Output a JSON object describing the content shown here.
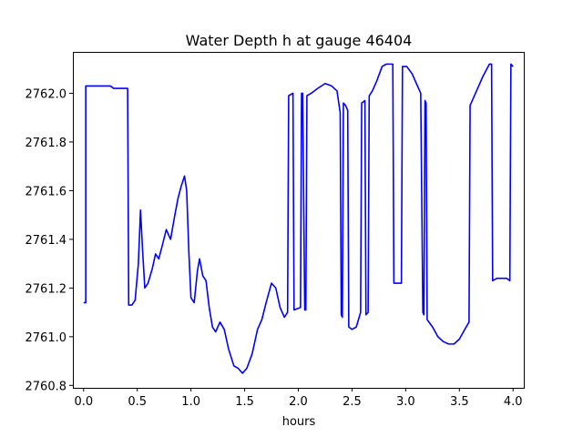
{
  "chart_data": {
    "type": "line",
    "title": "Water Depth h at gauge 46404",
    "xlabel": "hours",
    "ylabel": "",
    "xlim": [
      -0.1,
      4.1
    ],
    "ylim": [
      2760.79,
      2762.17
    ],
    "xticks": [
      0.0,
      0.5,
      1.0,
      1.5,
      2.0,
      2.5,
      3.0,
      3.5,
      4.0
    ],
    "xtick_labels": [
      "0.0",
      "0.5",
      "1.0",
      "1.5",
      "2.0",
      "2.5",
      "3.0",
      "3.5",
      "4.0"
    ],
    "yticks": [
      2760.8,
      2761.0,
      2761.2,
      2761.4,
      2761.6,
      2761.8,
      2762.0
    ],
    "ytick_labels": [
      "2760.8",
      "2761.0",
      "2761.2",
      "2761.4",
      "2761.6",
      "2761.8",
      "2762.0"
    ],
    "grid": false,
    "series": [
      {
        "name": "",
        "color": "#0000ff",
        "points": [
          [
            0.0,
            2761.14
          ],
          [
            0.02,
            2761.14
          ],
          [
            0.02,
            2762.03
          ],
          [
            0.25,
            2762.03
          ],
          [
            0.28,
            2762.02
          ],
          [
            0.41,
            2762.02
          ],
          [
            0.42,
            2761.13
          ],
          [
            0.45,
            2761.13
          ],
          [
            0.48,
            2761.15
          ],
          [
            0.51,
            2761.3
          ],
          [
            0.53,
            2761.52
          ],
          [
            0.55,
            2761.35
          ],
          [
            0.57,
            2761.2
          ],
          [
            0.6,
            2761.22
          ],
          [
            0.64,
            2761.28
          ],
          [
            0.67,
            2761.34
          ],
          [
            0.7,
            2761.32
          ],
          [
            0.73,
            2761.37
          ],
          [
            0.77,
            2761.44
          ],
          [
            0.81,
            2761.4
          ],
          [
            0.85,
            2761.5
          ],
          [
            0.88,
            2761.57
          ],
          [
            0.91,
            2761.62
          ],
          [
            0.94,
            2761.66
          ],
          [
            0.96,
            2761.6
          ],
          [
            0.98,
            2761.35
          ],
          [
            1.0,
            2761.16
          ],
          [
            1.03,
            2761.14
          ],
          [
            1.06,
            2761.27
          ],
          [
            1.08,
            2761.32
          ],
          [
            1.11,
            2761.25
          ],
          [
            1.14,
            2761.23
          ],
          [
            1.17,
            2761.12
          ],
          [
            1.2,
            2761.04
          ],
          [
            1.23,
            2761.02
          ],
          [
            1.27,
            2761.06
          ],
          [
            1.31,
            2761.03
          ],
          [
            1.35,
            2760.95
          ],
          [
            1.4,
            2760.88
          ],
          [
            1.44,
            2760.87
          ],
          [
            1.48,
            2760.85
          ],
          [
            1.52,
            2760.87
          ],
          [
            1.57,
            2760.93
          ],
          [
            1.62,
            2761.03
          ],
          [
            1.66,
            2761.07
          ],
          [
            1.7,
            2761.14
          ],
          [
            1.75,
            2761.22
          ],
          [
            1.79,
            2761.2
          ],
          [
            1.83,
            2761.12
          ],
          [
            1.87,
            2761.08
          ],
          [
            1.9,
            2761.1
          ],
          [
            1.91,
            2761.99
          ],
          [
            1.95,
            2762.0
          ],
          [
            1.96,
            2761.11
          ],
          [
            2.02,
            2761.12
          ],
          [
            2.03,
            2762.0
          ],
          [
            2.04,
            2762.0
          ],
          [
            2.06,
            2761.11
          ],
          [
            2.07,
            2761.11
          ],
          [
            2.08,
            2761.99
          ],
          [
            2.12,
            2762.0
          ],
          [
            2.18,
            2762.02
          ],
          [
            2.25,
            2762.04
          ],
          [
            2.31,
            2762.03
          ],
          [
            2.36,
            2762.01
          ],
          [
            2.39,
            2761.92
          ],
          [
            2.4,
            2761.09
          ],
          [
            2.41,
            2761.08
          ],
          [
            2.42,
            2761.96
          ],
          [
            2.44,
            2761.95
          ],
          [
            2.46,
            2761.93
          ],
          [
            2.47,
            2761.04
          ],
          [
            2.5,
            2761.03
          ],
          [
            2.54,
            2761.04
          ],
          [
            2.58,
            2761.1
          ],
          [
            2.59,
            2761.96
          ],
          [
            2.62,
            2761.97
          ],
          [
            2.63,
            2761.09
          ],
          [
            2.65,
            2761.1
          ],
          [
            2.66,
            2761.99
          ],
          [
            2.69,
            2762.01
          ],
          [
            2.73,
            2762.05
          ],
          [
            2.78,
            2762.11
          ],
          [
            2.82,
            2762.12
          ],
          [
            2.88,
            2762.12
          ],
          [
            2.89,
            2761.22
          ],
          [
            2.96,
            2761.22
          ],
          [
            2.97,
            2762.11
          ],
          [
            3.01,
            2762.11
          ],
          [
            3.06,
            2762.08
          ],
          [
            3.1,
            2762.04
          ],
          [
            3.14,
            2762.0
          ],
          [
            3.16,
            2761.1
          ],
          [
            3.17,
            2761.09
          ],
          [
            3.18,
            2761.97
          ],
          [
            3.19,
            2761.96
          ],
          [
            3.2,
            2761.07
          ],
          [
            3.25,
            2761.04
          ],
          [
            3.3,
            2761.0
          ],
          [
            3.35,
            2760.98
          ],
          [
            3.4,
            2760.97
          ],
          [
            3.45,
            2760.97
          ],
          [
            3.5,
            2760.99
          ],
          [
            3.55,
            2761.03
          ],
          [
            3.59,
            2761.06
          ],
          [
            3.6,
            2761.95
          ],
          [
            3.66,
            2762.01
          ],
          [
            3.72,
            2762.07
          ],
          [
            3.78,
            2762.12
          ],
          [
            3.8,
            2762.12
          ],
          [
            3.81,
            2761.23
          ],
          [
            3.85,
            2761.24
          ],
          [
            3.9,
            2761.24
          ],
          [
            3.94,
            2761.24
          ],
          [
            3.97,
            2761.23
          ],
          [
            3.98,
            2762.12
          ],
          [
            4.0,
            2762.11
          ]
        ]
      }
    ]
  }
}
